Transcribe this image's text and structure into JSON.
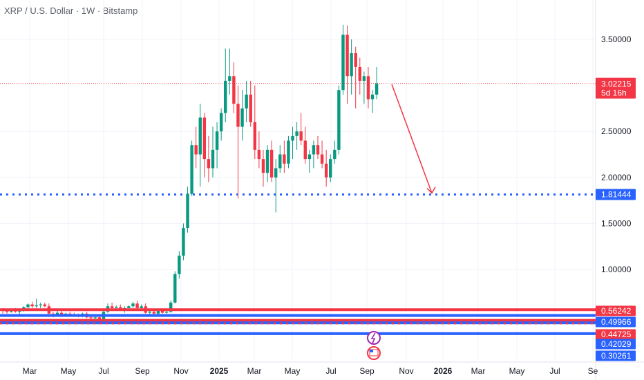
{
  "header": {
    "title": "XRP / U.S. Dollar · 1W · Bitstamp"
  },
  "colors": {
    "up": "#089981",
    "down": "#f23645",
    "blue_line": "#2962ff",
    "red_line": "#f23645",
    "dotted_price": "#f23645",
    "grid": "#f0f3fa"
  },
  "chart_data": {
    "type": "candlestick",
    "title": "XRP / U.S. Dollar · 1W · Bitstamp",
    "ylim": [
      0.28,
      3.72
    ],
    "y_ticks": [
      "3.50000",
      "2.50000",
      "2.00000",
      "1.50000",
      "1.00000"
    ],
    "x_labels": [
      "Mar",
      "May",
      "Jul",
      "Sep",
      "Nov",
      "2025",
      "Mar",
      "May",
      "Jul",
      "Sep",
      "Nov",
      "2026",
      "Mar",
      "May",
      "Jul",
      "Se"
    ],
    "x_bold_labels": [
      "2025",
      "2026"
    ],
    "current_price": {
      "value": "3.02215",
      "countdown": "5d 16h"
    },
    "blue_dotted_level": {
      "value": "1.81444"
    },
    "horizontal_levels": [
      {
        "value": "0.56242",
        "color": "red",
        "style": "solid"
      },
      {
        "value": "0.49966",
        "color": "blue",
        "style": "solid"
      },
      {
        "value": "0.44725",
        "color": "red",
        "style": "solid"
      },
      {
        "value": "0.42029",
        "color": "blue",
        "style": "solid"
      },
      {
        "value": "0.30261",
        "color": "blue",
        "style": "solid"
      }
    ],
    "projection_arrow": {
      "from": {
        "week": 88,
        "price": 3.0
      },
      "to": {
        "week": 103,
        "price": 1.8144
      }
    },
    "candles": [
      [
        0.56,
        0.58,
        0.52,
        0.55
      ],
      [
        0.55,
        0.57,
        0.52,
        0.54
      ],
      [
        0.54,
        0.57,
        0.53,
        0.56
      ],
      [
        0.56,
        0.58,
        0.53,
        0.54
      ],
      [
        0.54,
        0.56,
        0.51,
        0.55
      ],
      [
        0.55,
        0.6,
        0.54,
        0.59
      ],
      [
        0.59,
        0.63,
        0.57,
        0.62
      ],
      [
        0.62,
        0.65,
        0.58,
        0.6
      ],
      [
        0.6,
        0.68,
        0.58,
        0.61
      ],
      [
        0.61,
        0.64,
        0.58,
        0.62
      ],
      [
        0.62,
        0.64,
        0.59,
        0.6
      ],
      [
        0.6,
        0.63,
        0.52,
        0.52
      ],
      [
        0.52,
        0.54,
        0.48,
        0.5
      ],
      [
        0.5,
        0.55,
        0.49,
        0.53
      ],
      [
        0.53,
        0.55,
        0.5,
        0.51
      ],
      [
        0.51,
        0.53,
        0.49,
        0.52
      ],
      [
        0.52,
        0.54,
        0.5,
        0.51
      ],
      [
        0.51,
        0.53,
        0.49,
        0.5
      ],
      [
        0.5,
        0.52,
        0.48,
        0.49
      ],
      [
        0.49,
        0.53,
        0.48,
        0.52
      ],
      [
        0.52,
        0.54,
        0.47,
        0.48
      ],
      [
        0.48,
        0.5,
        0.45,
        0.47
      ],
      [
        0.47,
        0.5,
        0.43,
        0.48
      ],
      [
        0.48,
        0.5,
        0.44,
        0.45
      ],
      [
        0.45,
        0.55,
        0.44,
        0.54
      ],
      [
        0.54,
        0.63,
        0.53,
        0.6
      ],
      [
        0.6,
        0.64,
        0.57,
        0.58
      ],
      [
        0.58,
        0.61,
        0.55,
        0.59
      ],
      [
        0.59,
        0.62,
        0.56,
        0.57
      ],
      [
        0.57,
        0.6,
        0.53,
        0.58
      ],
      [
        0.58,
        0.61,
        0.55,
        0.6
      ],
      [
        0.6,
        0.65,
        0.58,
        0.63
      ],
      [
        0.63,
        0.66,
        0.57,
        0.58
      ],
      [
        0.58,
        0.62,
        0.56,
        0.6
      ],
      [
        0.6,
        0.63,
        0.52,
        0.53
      ],
      [
        0.53,
        0.56,
        0.51,
        0.54
      ],
      [
        0.54,
        0.56,
        0.51,
        0.52
      ],
      [
        0.52,
        0.56,
        0.51,
        0.55
      ],
      [
        0.55,
        0.57,
        0.52,
        0.53
      ],
      [
        0.53,
        0.55,
        0.52,
        0.54
      ],
      [
        0.54,
        0.66,
        0.53,
        0.64
      ],
      [
        0.64,
        0.98,
        0.63,
        0.95
      ],
      [
        0.95,
        1.2,
        0.9,
        1.15
      ],
      [
        1.15,
        1.5,
        1.1,
        1.45
      ],
      [
        1.45,
        1.9,
        1.4,
        1.82
      ],
      [
        1.82,
        2.4,
        1.8,
        2.35
      ],
      [
        2.35,
        2.55,
        2.1,
        2.25
      ],
      [
        2.25,
        2.8,
        1.9,
        2.65
      ],
      [
        2.65,
        2.7,
        2.0,
        2.2
      ],
      [
        2.2,
        2.45,
        1.95,
        2.1
      ],
      [
        2.1,
        2.55,
        2.0,
        2.3
      ],
      [
        2.3,
        2.6,
        2.1,
        2.5
      ],
      [
        2.5,
        2.75,
        2.4,
        2.7
      ],
      [
        2.7,
        3.4,
        2.6,
        3.05
      ],
      [
        3.05,
        3.4,
        2.9,
        3.1
      ],
      [
        3.1,
        3.25,
        2.7,
        2.8
      ],
      [
        2.8,
        3.0,
        1.77,
        2.55
      ],
      [
        2.55,
        2.95,
        2.4,
        2.75
      ],
      [
        2.75,
        3.05,
        2.6,
        2.9
      ],
      [
        2.9,
        3.05,
        2.55,
        2.6
      ],
      [
        2.6,
        3.0,
        2.2,
        2.3
      ],
      [
        2.3,
        2.5,
        2.1,
        2.2
      ],
      [
        2.2,
        2.3,
        1.9,
        2.05
      ],
      [
        2.05,
        2.35,
        1.95,
        2.3
      ],
      [
        2.3,
        2.4,
        1.95,
        2.0
      ],
      [
        2.0,
        2.2,
        1.62,
        2.1
      ],
      [
        2.1,
        2.35,
        2.05,
        2.25
      ],
      [
        2.25,
        2.4,
        2.05,
        2.15
      ],
      [
        2.15,
        2.45,
        2.1,
        2.4
      ],
      [
        2.4,
        2.55,
        2.2,
        2.45
      ],
      [
        2.45,
        2.6,
        2.3,
        2.5
      ],
      [
        2.5,
        2.7,
        2.35,
        2.4
      ],
      [
        2.4,
        2.55,
        2.15,
        2.2
      ],
      [
        2.2,
        2.3,
        2.05,
        2.25
      ],
      [
        2.25,
        2.4,
        2.1,
        2.35
      ],
      [
        2.35,
        2.45,
        2.2,
        2.25
      ],
      [
        2.25,
        2.4,
        2.1,
        2.15
      ],
      [
        2.15,
        2.3,
        1.9,
        2.0
      ],
      [
        2.0,
        2.25,
        1.95,
        2.2
      ],
      [
        2.2,
        2.4,
        2.15,
        2.3
      ],
      [
        2.3,
        3.0,
        2.25,
        2.95
      ],
      [
        2.95,
        3.66,
        2.9,
        3.55
      ],
      [
        3.55,
        3.65,
        2.8,
        3.1
      ],
      [
        3.1,
        3.5,
        2.9,
        3.35
      ],
      [
        3.35,
        3.42,
        2.75,
        3.2
      ],
      [
        3.2,
        3.3,
        2.9,
        3.05
      ],
      [
        3.05,
        3.15,
        2.8,
        3.1
      ],
      [
        3.1,
        3.2,
        2.75,
        2.85
      ],
      [
        2.85,
        2.95,
        2.7,
        2.9
      ],
      [
        2.9,
        3.2,
        2.85,
        3.02
      ]
    ]
  }
}
